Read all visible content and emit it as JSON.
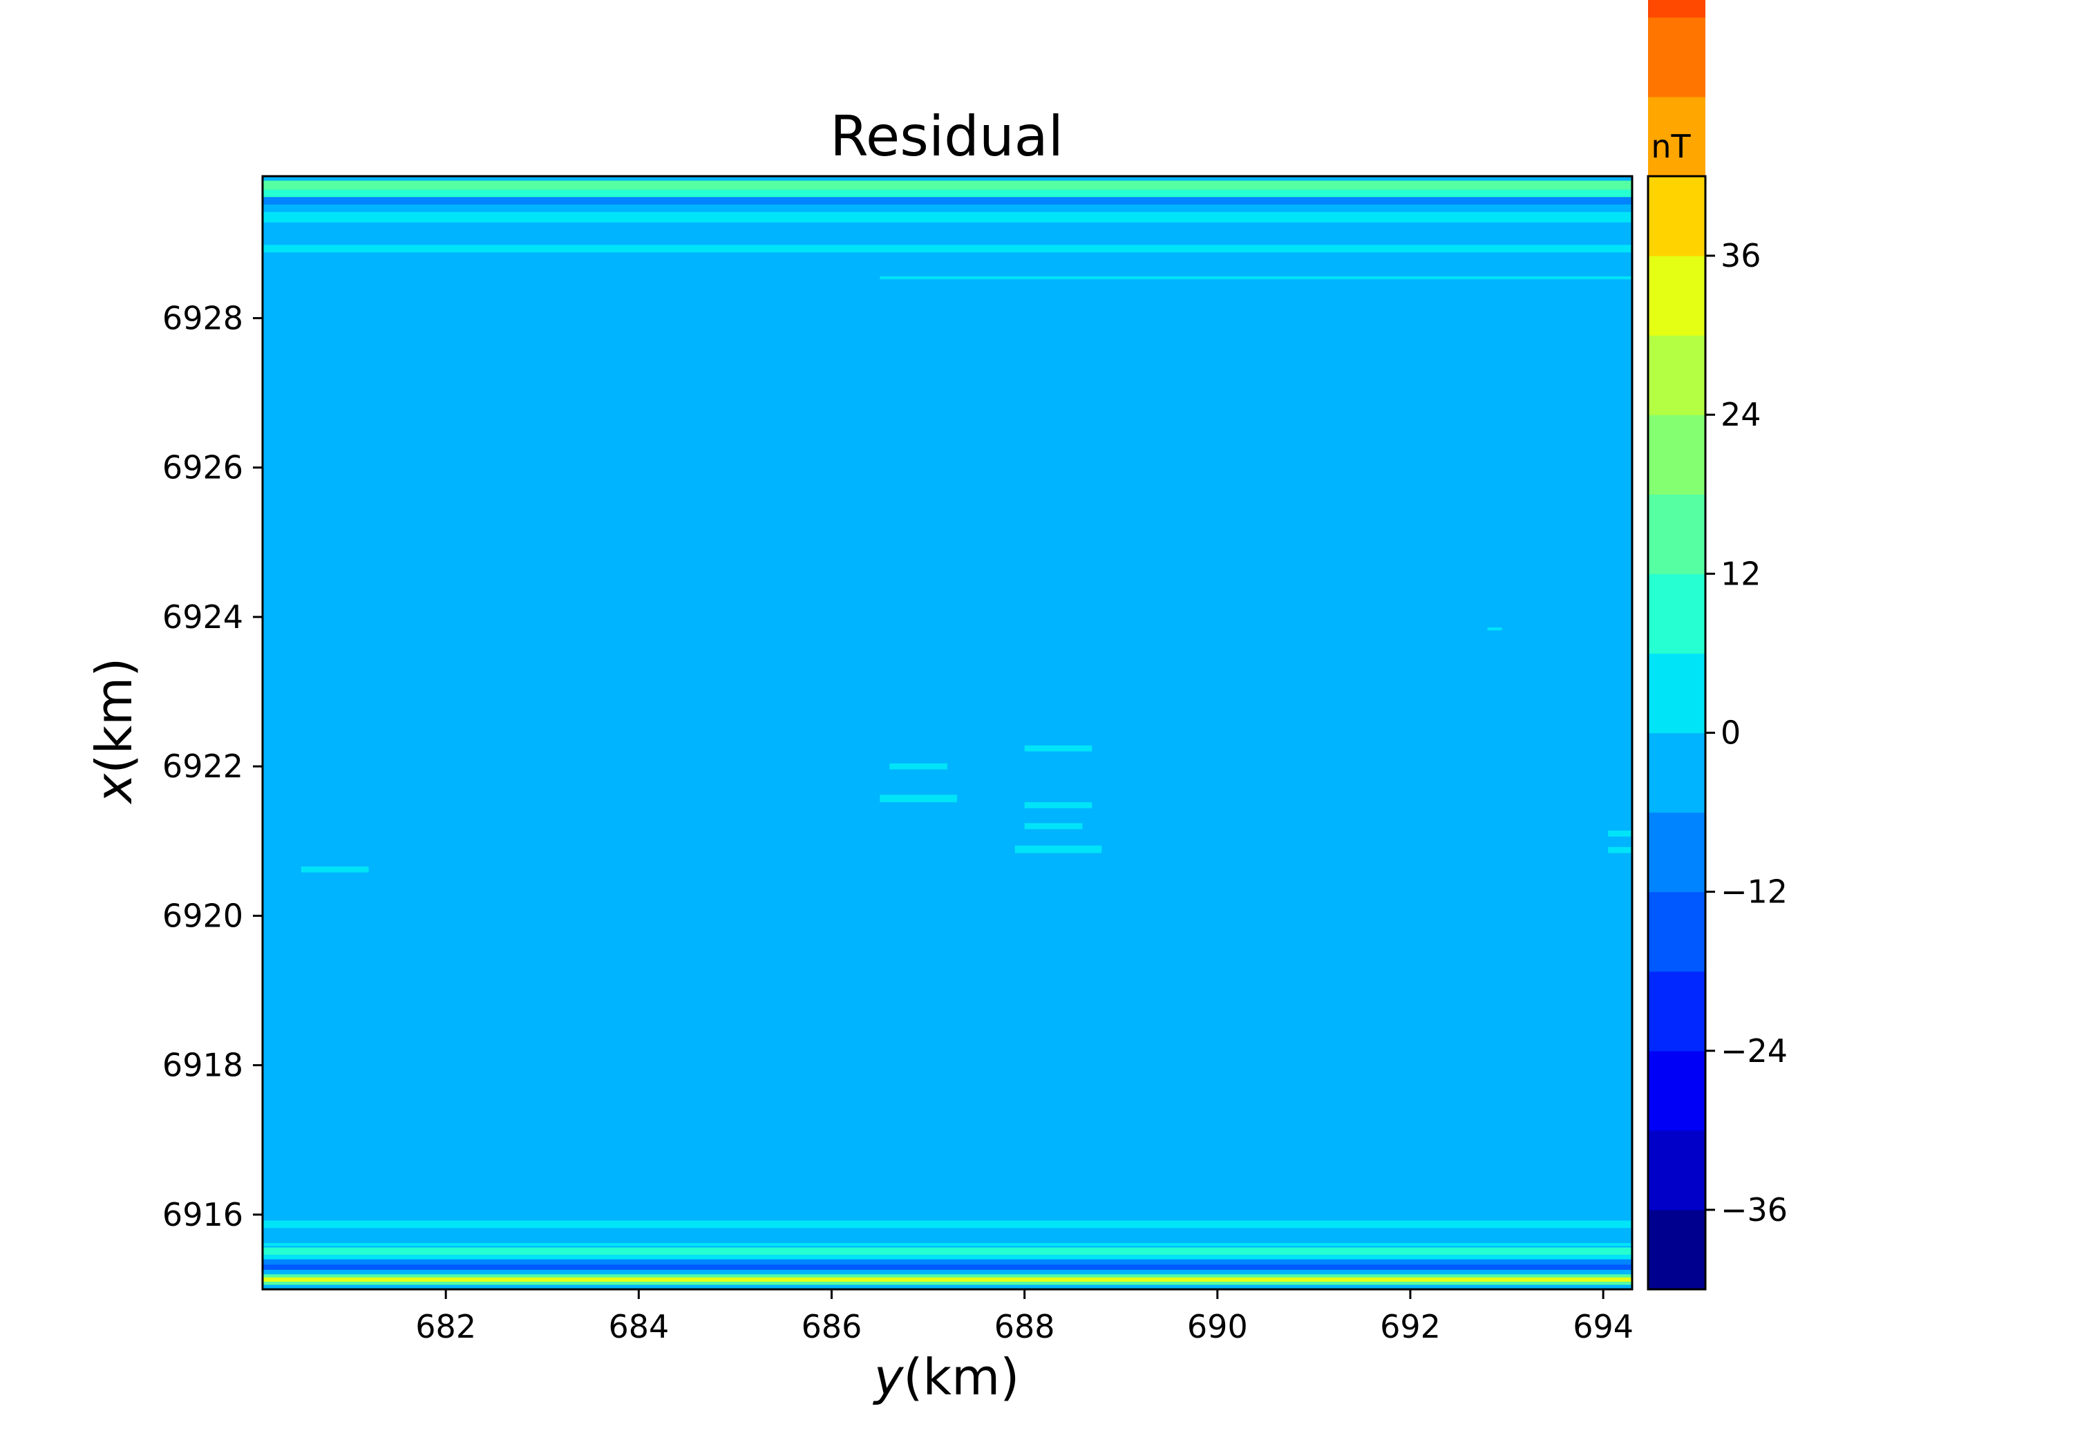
{
  "chart_data": {
    "type": "heatmap",
    "title": "Residual",
    "xlabel_var": "y",
    "xlabel_unit": "(km)",
    "ylabel_var": "x",
    "ylabel_unit": "(km)",
    "xlim": [
      680.1,
      694.3
    ],
    "ylim": [
      6915.0,
      6929.9
    ],
    "x_ticks": [
      682,
      684,
      686,
      688,
      690,
      692,
      694
    ],
    "x_tick_labels": [
      "682",
      "684",
      "686",
      "688",
      "690",
      "692",
      "694"
    ],
    "y_ticks": [
      6916,
      6918,
      6920,
      6922,
      6924,
      6926,
      6928
    ],
    "y_tick_labels": [
      "6916",
      "6918",
      "6920",
      "6922",
      "6924",
      "6926",
      "6928"
    ],
    "grid": false,
    "background_level": -2,
    "colorbar": {
      "unit_label": "nT",
      "range": [
        -42,
        42
      ],
      "level_step": 6,
      "tick_values": [
        -36,
        -24,
        -12,
        0,
        12,
        24,
        36
      ],
      "tick_labels": [
        "−36",
        "−24",
        "−12",
        "0",
        "12",
        "24",
        "36"
      ],
      "colors": [
        "#00008f",
        "#0000c8",
        "#0000f6",
        "#0028ff",
        "#0058ff",
        "#0084ff",
        "#00b4ff",
        "#00e4f8",
        "#26ffd1",
        "#55ffa2",
        "#84ff72",
        "#b4ff43",
        "#e4ff14",
        "#ffd300",
        "#ffa600",
        "#ff7500",
        "#ff4800",
        "#ff1800",
        "#cb0000",
        "#920000"
      ]
    },
    "bands": [
      {
        "x_from": 680.1,
        "x_to": 694.3,
        "y_from": 6929.72,
        "y_to": 6929.84,
        "value": 15
      },
      {
        "x_from": 680.1,
        "x_to": 694.3,
        "y_from": 6929.62,
        "y_to": 6929.72,
        "value": 6
      },
      {
        "x_from": 680.1,
        "x_to": 694.3,
        "y_from": 6929.52,
        "y_to": 6929.62,
        "value": -9
      },
      {
        "x_from": 680.1,
        "x_to": 694.3,
        "y_from": 6929.42,
        "y_to": 6929.52,
        "value": -5
      },
      {
        "x_from": 680.1,
        "x_to": 694.3,
        "y_from": 6929.28,
        "y_to": 6929.42,
        "value": 4
      },
      {
        "x_from": 680.1,
        "x_to": 694.3,
        "y_from": 6928.88,
        "y_to": 6928.98,
        "value": 4
      },
      {
        "x_from": 686.5,
        "x_to": 694.3,
        "y_from": 6928.52,
        "y_to": 6928.56,
        "value": 4
      },
      {
        "x_from": 680.5,
        "x_to": 681.2,
        "y_from": 6920.58,
        "y_to": 6920.66,
        "value": 4
      },
      {
        "x_from": 686.5,
        "x_to": 687.3,
        "y_from": 6921.52,
        "y_to": 6921.62,
        "value": 4
      },
      {
        "x_from": 686.6,
        "x_to": 687.2,
        "y_from": 6921.96,
        "y_to": 6922.04,
        "value": 4
      },
      {
        "x_from": 688.0,
        "x_to": 688.7,
        "y_from": 6922.2,
        "y_to": 6922.28,
        "value": 4
      },
      {
        "x_from": 688.0,
        "x_to": 688.7,
        "y_from": 6921.44,
        "y_to": 6921.52,
        "value": 4
      },
      {
        "x_from": 688.0,
        "x_to": 688.6,
        "y_from": 6921.16,
        "y_to": 6921.24,
        "value": 4
      },
      {
        "x_from": 687.9,
        "x_to": 688.8,
        "y_from": 6920.84,
        "y_to": 6920.94,
        "value": 4
      },
      {
        "x_from": 694.05,
        "x_to": 694.3,
        "y_from": 6921.06,
        "y_to": 6921.14,
        "value": 4
      },
      {
        "x_from": 694.05,
        "x_to": 694.3,
        "y_from": 6920.84,
        "y_to": 6920.92,
        "value": 4
      },
      {
        "x_from": 692.8,
        "x_to": 692.95,
        "y_from": 6923.82,
        "y_to": 6923.86,
        "value": 4
      },
      {
        "x_from": 680.1,
        "x_to": 694.3,
        "y_from": 6915.82,
        "y_to": 6915.92,
        "value": 4
      },
      {
        "x_from": 680.1,
        "x_to": 694.3,
        "y_from": 6915.58,
        "y_to": 6915.62,
        "value": 4
      },
      {
        "x_from": 680.1,
        "x_to": 694.3,
        "y_from": 6915.46,
        "y_to": 6915.56,
        "value": 8
      },
      {
        "x_from": 680.1,
        "x_to": 694.3,
        "y_from": 6915.4,
        "y_to": 6915.46,
        "value": 2
      },
      {
        "x_from": 680.1,
        "x_to": 694.3,
        "y_from": 6915.33,
        "y_to": 6915.4,
        "value": -9
      },
      {
        "x_from": 680.1,
        "x_to": 694.3,
        "y_from": 6915.26,
        "y_to": 6915.33,
        "value": -15
      },
      {
        "x_from": 680.1,
        "x_to": 694.3,
        "y_from": 6915.2,
        "y_to": 6915.26,
        "value": -5
      },
      {
        "x_from": 680.1,
        "x_to": 694.3,
        "y_from": 6915.16,
        "y_to": 6915.2,
        "value": 15
      },
      {
        "x_from": 680.1,
        "x_to": 694.3,
        "y_from": 6915.1,
        "y_to": 6915.16,
        "value": 33
      },
      {
        "x_from": 680.1,
        "x_to": 694.3,
        "y_from": 6915.06,
        "y_to": 6915.1,
        "value": 15
      },
      {
        "x_from": 680.1,
        "x_to": 694.3,
        "y_from": 6915.0,
        "y_to": 6915.06,
        "value": -5
      }
    ]
  }
}
